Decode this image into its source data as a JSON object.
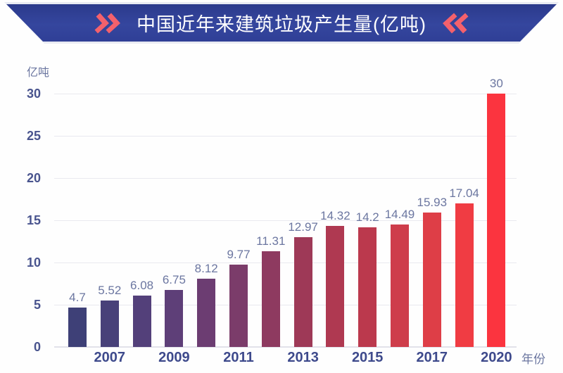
{
  "banner": {
    "title": "中国近年来建筑垃圾产生量(亿吨)",
    "bg_color": "#31409a",
    "chevron_color": "#f4616c",
    "title_color": "#ffffff"
  },
  "chart_data": {
    "type": "bar",
    "title": "中国近年来建筑垃圾产生量(亿吨)",
    "ylabel": "亿吨",
    "xlabel": "年份",
    "ylim": [
      0,
      30
    ],
    "y_ticks": [
      30,
      25,
      20,
      15,
      10,
      5,
      0
    ],
    "grid": true,
    "legend": "none",
    "values": [
      4.7,
      5.52,
      6.08,
      6.75,
      8.12,
      9.77,
      11.31,
      12.97,
      14.32,
      14.2,
      14.49,
      15.93,
      17.04,
      30
    ],
    "value_labels": [
      "4.7",
      "5.52",
      "6.08",
      "6.75",
      "8.12",
      "9.77",
      "11.31",
      "12.97",
      "14.32",
      "14.2",
      "14.49",
      "15.93",
      "17.04",
      "30"
    ],
    "bar_colors": [
      "#3E4077",
      "#484179",
      "#53407A",
      "#5E3F78",
      "#6C3D72",
      "#7B3C6A",
      "#8E3A60",
      "#9E3957",
      "#AF3951",
      "#BB394D",
      "#CE3D4B",
      "#DE3E47",
      "#F03C43",
      "#FB343F"
    ],
    "x_tick_labels": [
      {
        "bar_index": 1,
        "label": "2007"
      },
      {
        "bar_index": 3,
        "label": "2009"
      },
      {
        "bar_index": 5,
        "label": "2011"
      },
      {
        "bar_index": 7,
        "label": "2013"
      },
      {
        "bar_index": 9,
        "label": "2015"
      },
      {
        "bar_index": 11,
        "label": "2017"
      },
      {
        "bar_index": 13,
        "label": "2020"
      }
    ],
    "colors": {
      "grid": "#e9e9ef",
      "axis": "#e2e2ea",
      "y_tick_label": "#49548e",
      "year_label": "#3e4a8c",
      "value_label": "#6b76a0",
      "unit_label": "#6b76a0"
    }
  }
}
